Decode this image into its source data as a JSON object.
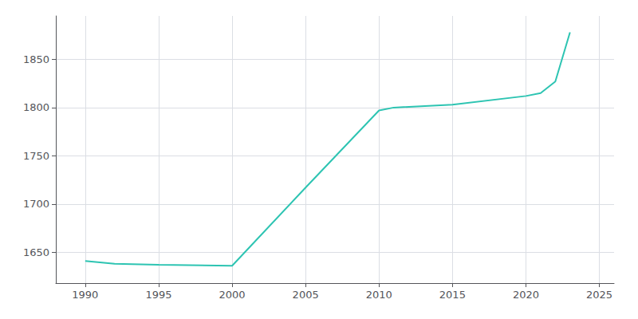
{
  "chart_data": {
    "type": "line",
    "x": [
      1990,
      1992,
      1995,
      2000,
      2005,
      2010,
      2011,
      2015,
      2020,
      2021,
      2022,
      2023
    ],
    "values": [
      1641,
      1638,
      1637,
      1636,
      1717,
      1797,
      1800,
      1803,
      1812,
      1815,
      1827,
      1878
    ],
    "color": "#2dc4b2",
    "xlim": [
      1988,
      2026
    ],
    "ylim": [
      1618,
      1895
    ],
    "xticks": [
      1990,
      1995,
      2000,
      2005,
      2010,
      2015,
      2020,
      2025
    ],
    "yticks": [
      1650,
      1700,
      1750,
      1800,
      1850
    ],
    "grid": true
  }
}
